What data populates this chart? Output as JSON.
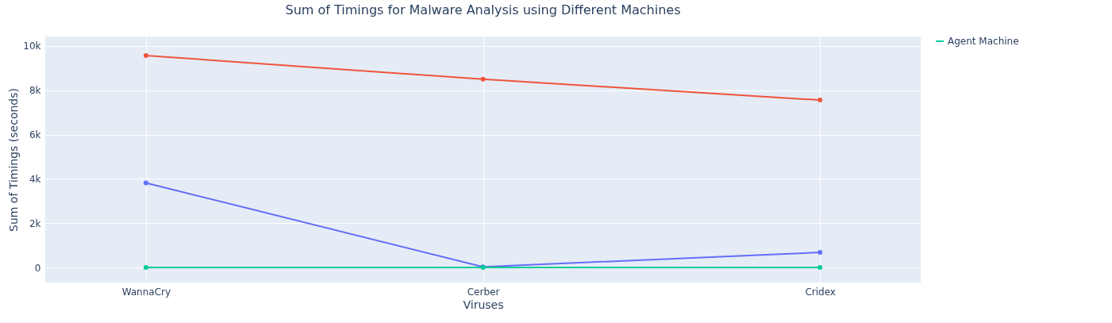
{
  "chart_data": {
    "type": "line",
    "title": "Sum of Timings for Malware Analysis using Different Machines",
    "xlabel": "Viruses",
    "ylabel": "Sum of Timings (seconds)",
    "categories": [
      "WannaCry",
      "Cerber",
      "Cridex"
    ],
    "series": [
      {
        "color": "#636efa",
        "values": [
          3820,
          30,
          680
        ]
      },
      {
        "color": "#ef553b",
        "values": [
          9570,
          8500,
          7560
        ]
      },
      {
        "name": "Agent Machine",
        "color": "#00cc96",
        "values": [
          0,
          0,
          0
        ]
      }
    ],
    "ylim": [
      -680,
      10430
    ],
    "yticks": [
      {
        "value": 0,
        "label": "0"
      },
      {
        "value": 2000,
        "label": "2k"
      },
      {
        "value": 4000,
        "label": "4k"
      },
      {
        "value": 6000,
        "label": "6k"
      },
      {
        "value": 8000,
        "label": "8k"
      },
      {
        "value": 10000,
        "label": "10k"
      }
    ],
    "grid": true,
    "legend": "top right",
    "marker": "circle",
    "line_style": "solid"
  }
}
